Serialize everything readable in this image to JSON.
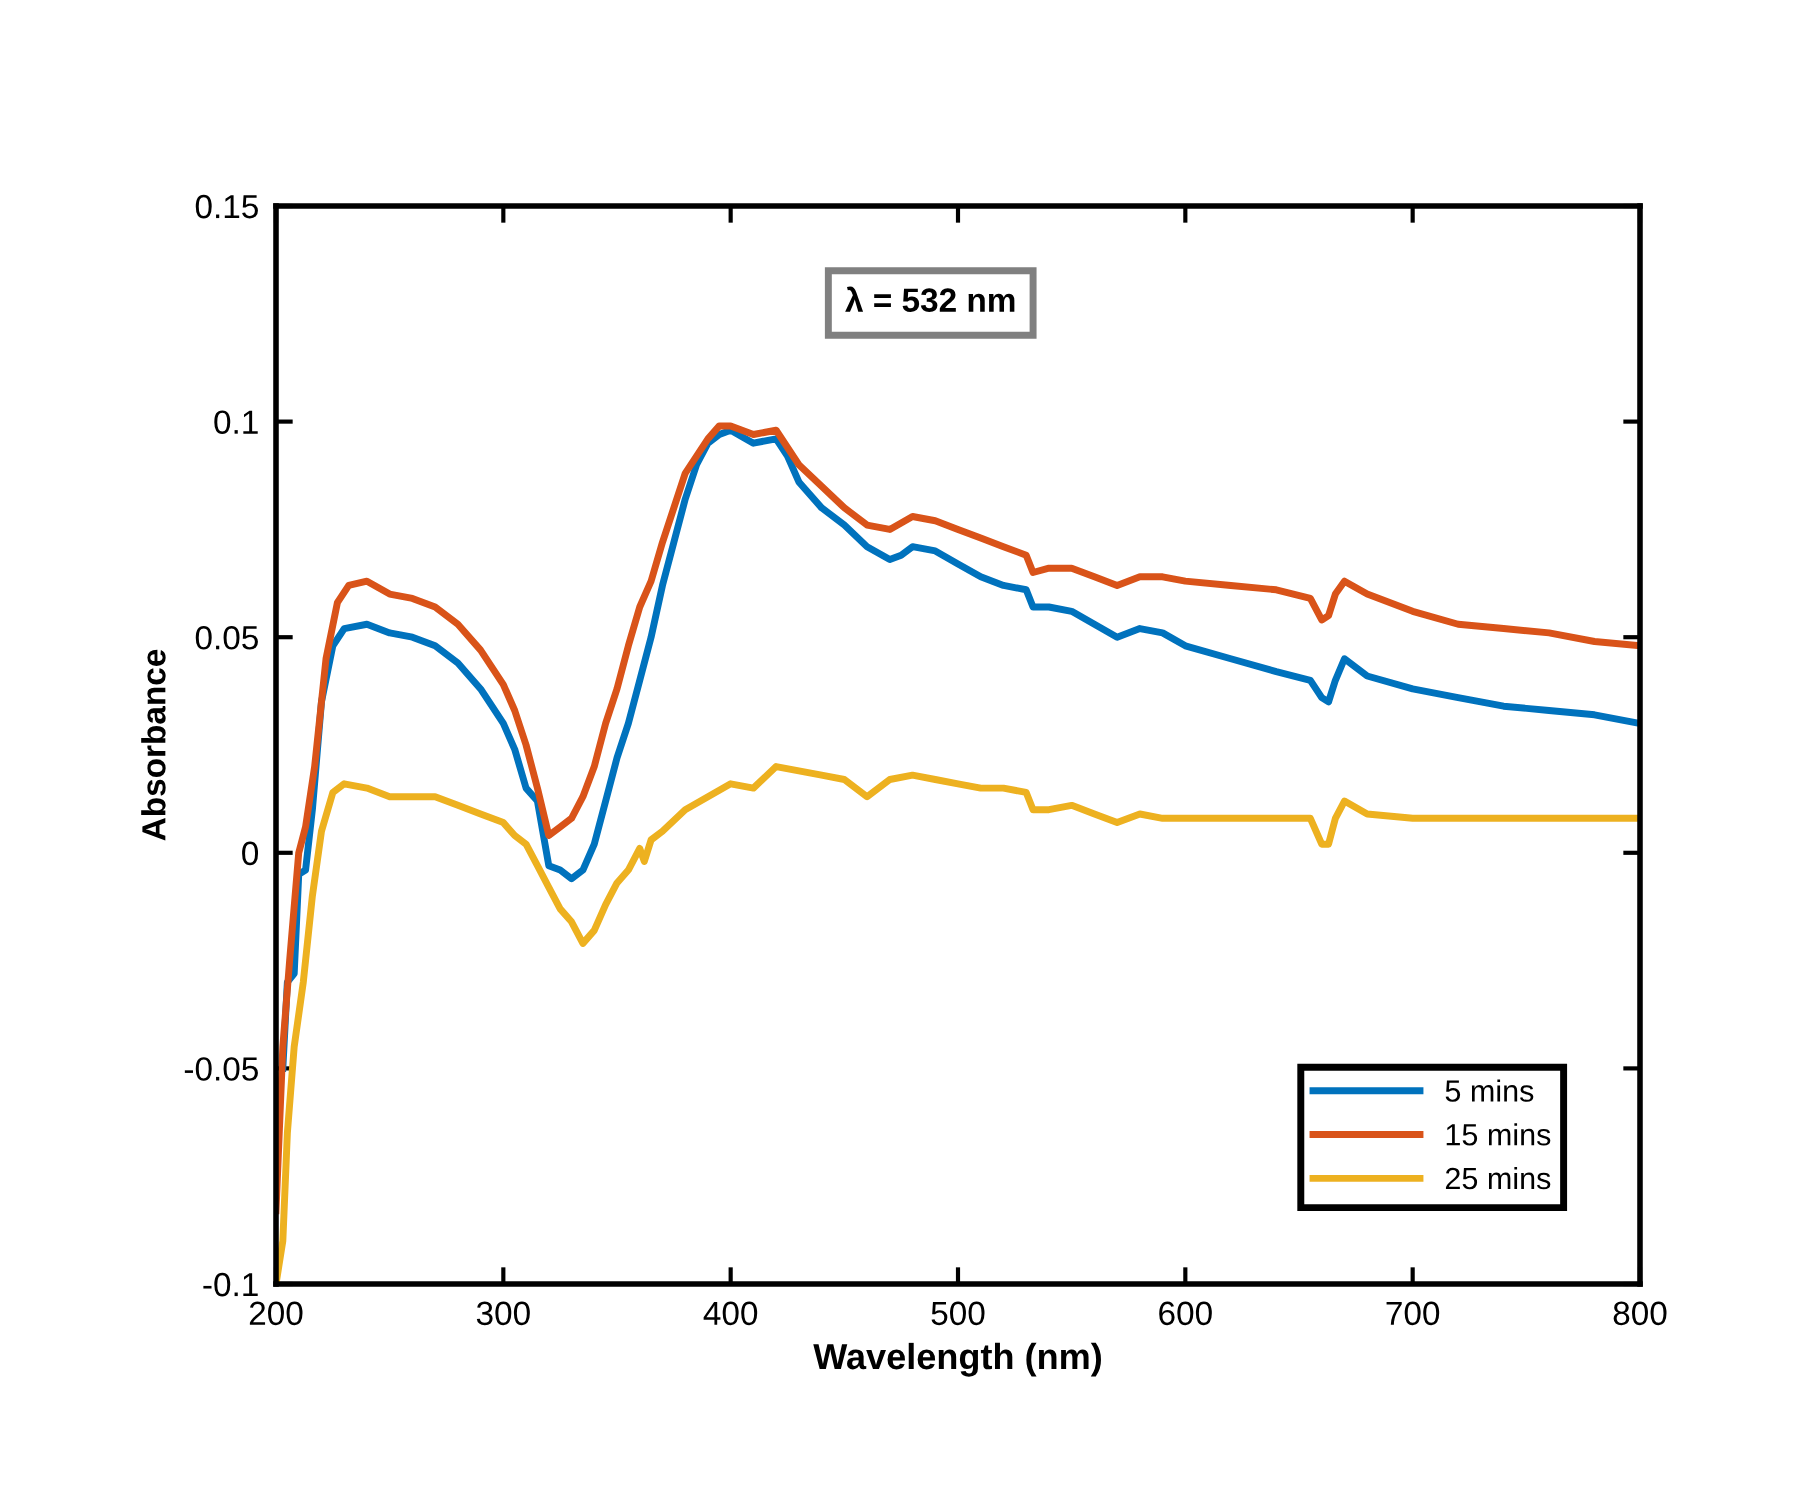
{
  "chart_data": {
    "type": "line",
    "xlabel": "Wavelength (nm)",
    "ylabel": "Absorbance",
    "xlim": [
      200,
      800
    ],
    "xticks": [
      200,
      300,
      400,
      500,
      600,
      700,
      800
    ],
    "ylim": [
      -0.1,
      0.15
    ],
    "yticks": [
      -0.1,
      -0.05,
      0,
      0.05,
      0.1,
      0.15
    ],
    "annotations": [
      "λ = 532 nm"
    ],
    "legend": "bottom right",
    "grid": false,
    "line_style": "solid",
    "marker": "none",
    "series": [
      {
        "name": "5 mins",
        "color": "#0072bd",
        "x": [
          203,
          205,
          208,
          210,
          213,
          216,
          220,
          225,
          230,
          240,
          250,
          260,
          270,
          280,
          290,
          300,
          305,
          310,
          315,
          318,
          320,
          325,
          330,
          335,
          340,
          345,
          350,
          355,
          360,
          365,
          370,
          375,
          380,
          385,
          390,
          395,
          400,
          410,
          420,
          425,
          430,
          440,
          450,
          460,
          470,
          475,
          480,
          490,
          500,
          510,
          520,
          530,
          533,
          540,
          550,
          560,
          570,
          580,
          590,
          600,
          620,
          640,
          655,
          660,
          663,
          666,
          670,
          680,
          700,
          720,
          740,
          760,
          780,
          800
        ],
        "values": [
          -0.05,
          -0.03,
          -0.028,
          -0.005,
          -0.004,
          0.01,
          0.035,
          0.048,
          0.052,
          0.053,
          0.051,
          0.05,
          0.048,
          0.044,
          0.038,
          0.03,
          0.024,
          0.015,
          0.012,
          0.003,
          -0.003,
          -0.004,
          -0.006,
          -0.004,
          0.002,
          0.012,
          0.022,
          0.03,
          0.04,
          0.05,
          0.062,
          0.072,
          0.082,
          0.09,
          0.095,
          0.097,
          0.098,
          0.095,
          0.096,
          0.092,
          0.086,
          0.08,
          0.076,
          0.071,
          0.068,
          0.069,
          0.071,
          0.07,
          0.067,
          0.064,
          0.062,
          0.061,
          0.057,
          0.057,
          0.056,
          0.053,
          0.05,
          0.052,
          0.051,
          0.048,
          0.045,
          0.042,
          0.04,
          0.036,
          0.035,
          0.04,
          0.045,
          0.041,
          0.038,
          0.036,
          0.034,
          0.033,
          0.032,
          0.03
        ]
      },
      {
        "name": "15 mins",
        "color": "#d95319",
        "x": [
          200,
          203,
          206,
          210,
          213,
          217,
          222,
          227,
          232,
          240,
          250,
          260,
          270,
          280,
          290,
          300,
          305,
          310,
          315,
          320,
          325,
          330,
          335,
          340,
          345,
          350,
          355,
          360,
          365,
          370,
          375,
          380,
          385,
          390,
          395,
          400,
          410,
          420,
          425,
          430,
          440,
          450,
          460,
          470,
          480,
          490,
          500,
          510,
          520,
          530,
          533,
          540,
          550,
          560,
          570,
          580,
          590,
          600,
          620,
          640,
          655,
          660,
          663,
          666,
          670,
          680,
          700,
          720,
          740,
          760,
          780,
          800
        ],
        "values": [
          -0.083,
          -0.045,
          -0.025,
          0.0,
          0.006,
          0.02,
          0.045,
          0.058,
          0.062,
          0.063,
          0.06,
          0.059,
          0.057,
          0.053,
          0.047,
          0.039,
          0.033,
          0.025,
          0.015,
          0.004,
          0.006,
          0.008,
          0.013,
          0.02,
          0.03,
          0.038,
          0.048,
          0.057,
          0.063,
          0.072,
          0.08,
          0.088,
          0.092,
          0.096,
          0.099,
          0.099,
          0.097,
          0.098,
          0.094,
          0.09,
          0.085,
          0.08,
          0.076,
          0.075,
          0.078,
          0.077,
          0.075,
          0.073,
          0.071,
          0.069,
          0.065,
          0.066,
          0.066,
          0.064,
          0.062,
          0.064,
          0.064,
          0.063,
          0.062,
          0.061,
          0.059,
          0.054,
          0.055,
          0.06,
          0.063,
          0.06,
          0.056,
          0.053,
          0.052,
          0.051,
          0.049,
          0.048
        ]
      },
      {
        "name": "25 mins",
        "color": "#edb120",
        "x": [
          200,
          203,
          205,
          208,
          212,
          216,
          220,
          225,
          230,
          240,
          250,
          260,
          270,
          280,
          290,
          300,
          305,
          310,
          315,
          320,
          325,
          330,
          335,
          340,
          345,
          350,
          355,
          360,
          362,
          365,
          370,
          380,
          390,
          400,
          410,
          420,
          430,
          440,
          450,
          460,
          470,
          480,
          490,
          500,
          510,
          520,
          530,
          533,
          540,
          550,
          560,
          570,
          580,
          590,
          600,
          620,
          640,
          655,
          660,
          663,
          666,
          670,
          680,
          700,
          740,
          800
        ],
        "values": [
          -0.1,
          -0.09,
          -0.065,
          -0.045,
          -0.03,
          -0.01,
          0.005,
          0.014,
          0.016,
          0.015,
          0.013,
          0.013,
          0.013,
          0.011,
          0.009,
          0.007,
          0.004,
          0.002,
          -0.003,
          -0.008,
          -0.013,
          -0.016,
          -0.021,
          -0.018,
          -0.012,
          -0.007,
          -0.004,
          0.001,
          -0.002,
          0.003,
          0.005,
          0.01,
          0.013,
          0.016,
          0.015,
          0.02,
          0.019,
          0.018,
          0.017,
          0.013,
          0.017,
          0.018,
          0.017,
          0.016,
          0.015,
          0.015,
          0.014,
          0.01,
          0.01,
          0.011,
          0.009,
          0.007,
          0.009,
          0.008,
          0.008,
          0.008,
          0.008,
          0.008,
          0.002,
          0.002,
          0.008,
          0.012,
          0.009,
          0.008,
          0.008,
          0.008
        ]
      }
    ]
  }
}
